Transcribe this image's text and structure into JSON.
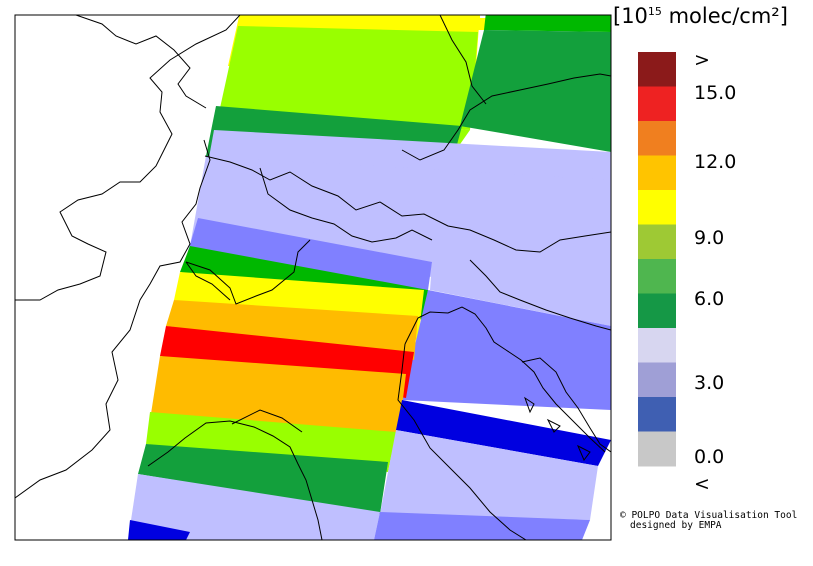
{
  "legend": {
    "unit_prefix": "[10",
    "unit_exp": "15",
    "unit_suffix": " molec/cm²]",
    "labels": [
      ">",
      "15.0",
      "12.0",
      "9.0",
      "6.0",
      "3.0",
      "0.0",
      "<"
    ],
    "colors": [
      "#8b1a1a",
      "#ee2222",
      "#f07f1f",
      "#ffc400",
      "#ffff00",
      "#9ec934",
      "#4fb64f",
      "#159846",
      "#d7d6f0",
      "#9f9fd6",
      "#3f5fb2",
      "#c8c8c8"
    ]
  },
  "swath_colors": {
    "dark_green": "#13a03c",
    "light_green": "#99ff00",
    "mid_green": "#00b800",
    "yellow": "#ffff00",
    "orange": "#ffbb00",
    "red": "#ff0000",
    "lavender": "#bfbfff",
    "periwinkle": "#8080ff",
    "blue": "#0000e0"
  },
  "credit": {
    "line1": "© POLPO Data Visualisation Tool",
    "line2": "designed by EMPA"
  }
}
